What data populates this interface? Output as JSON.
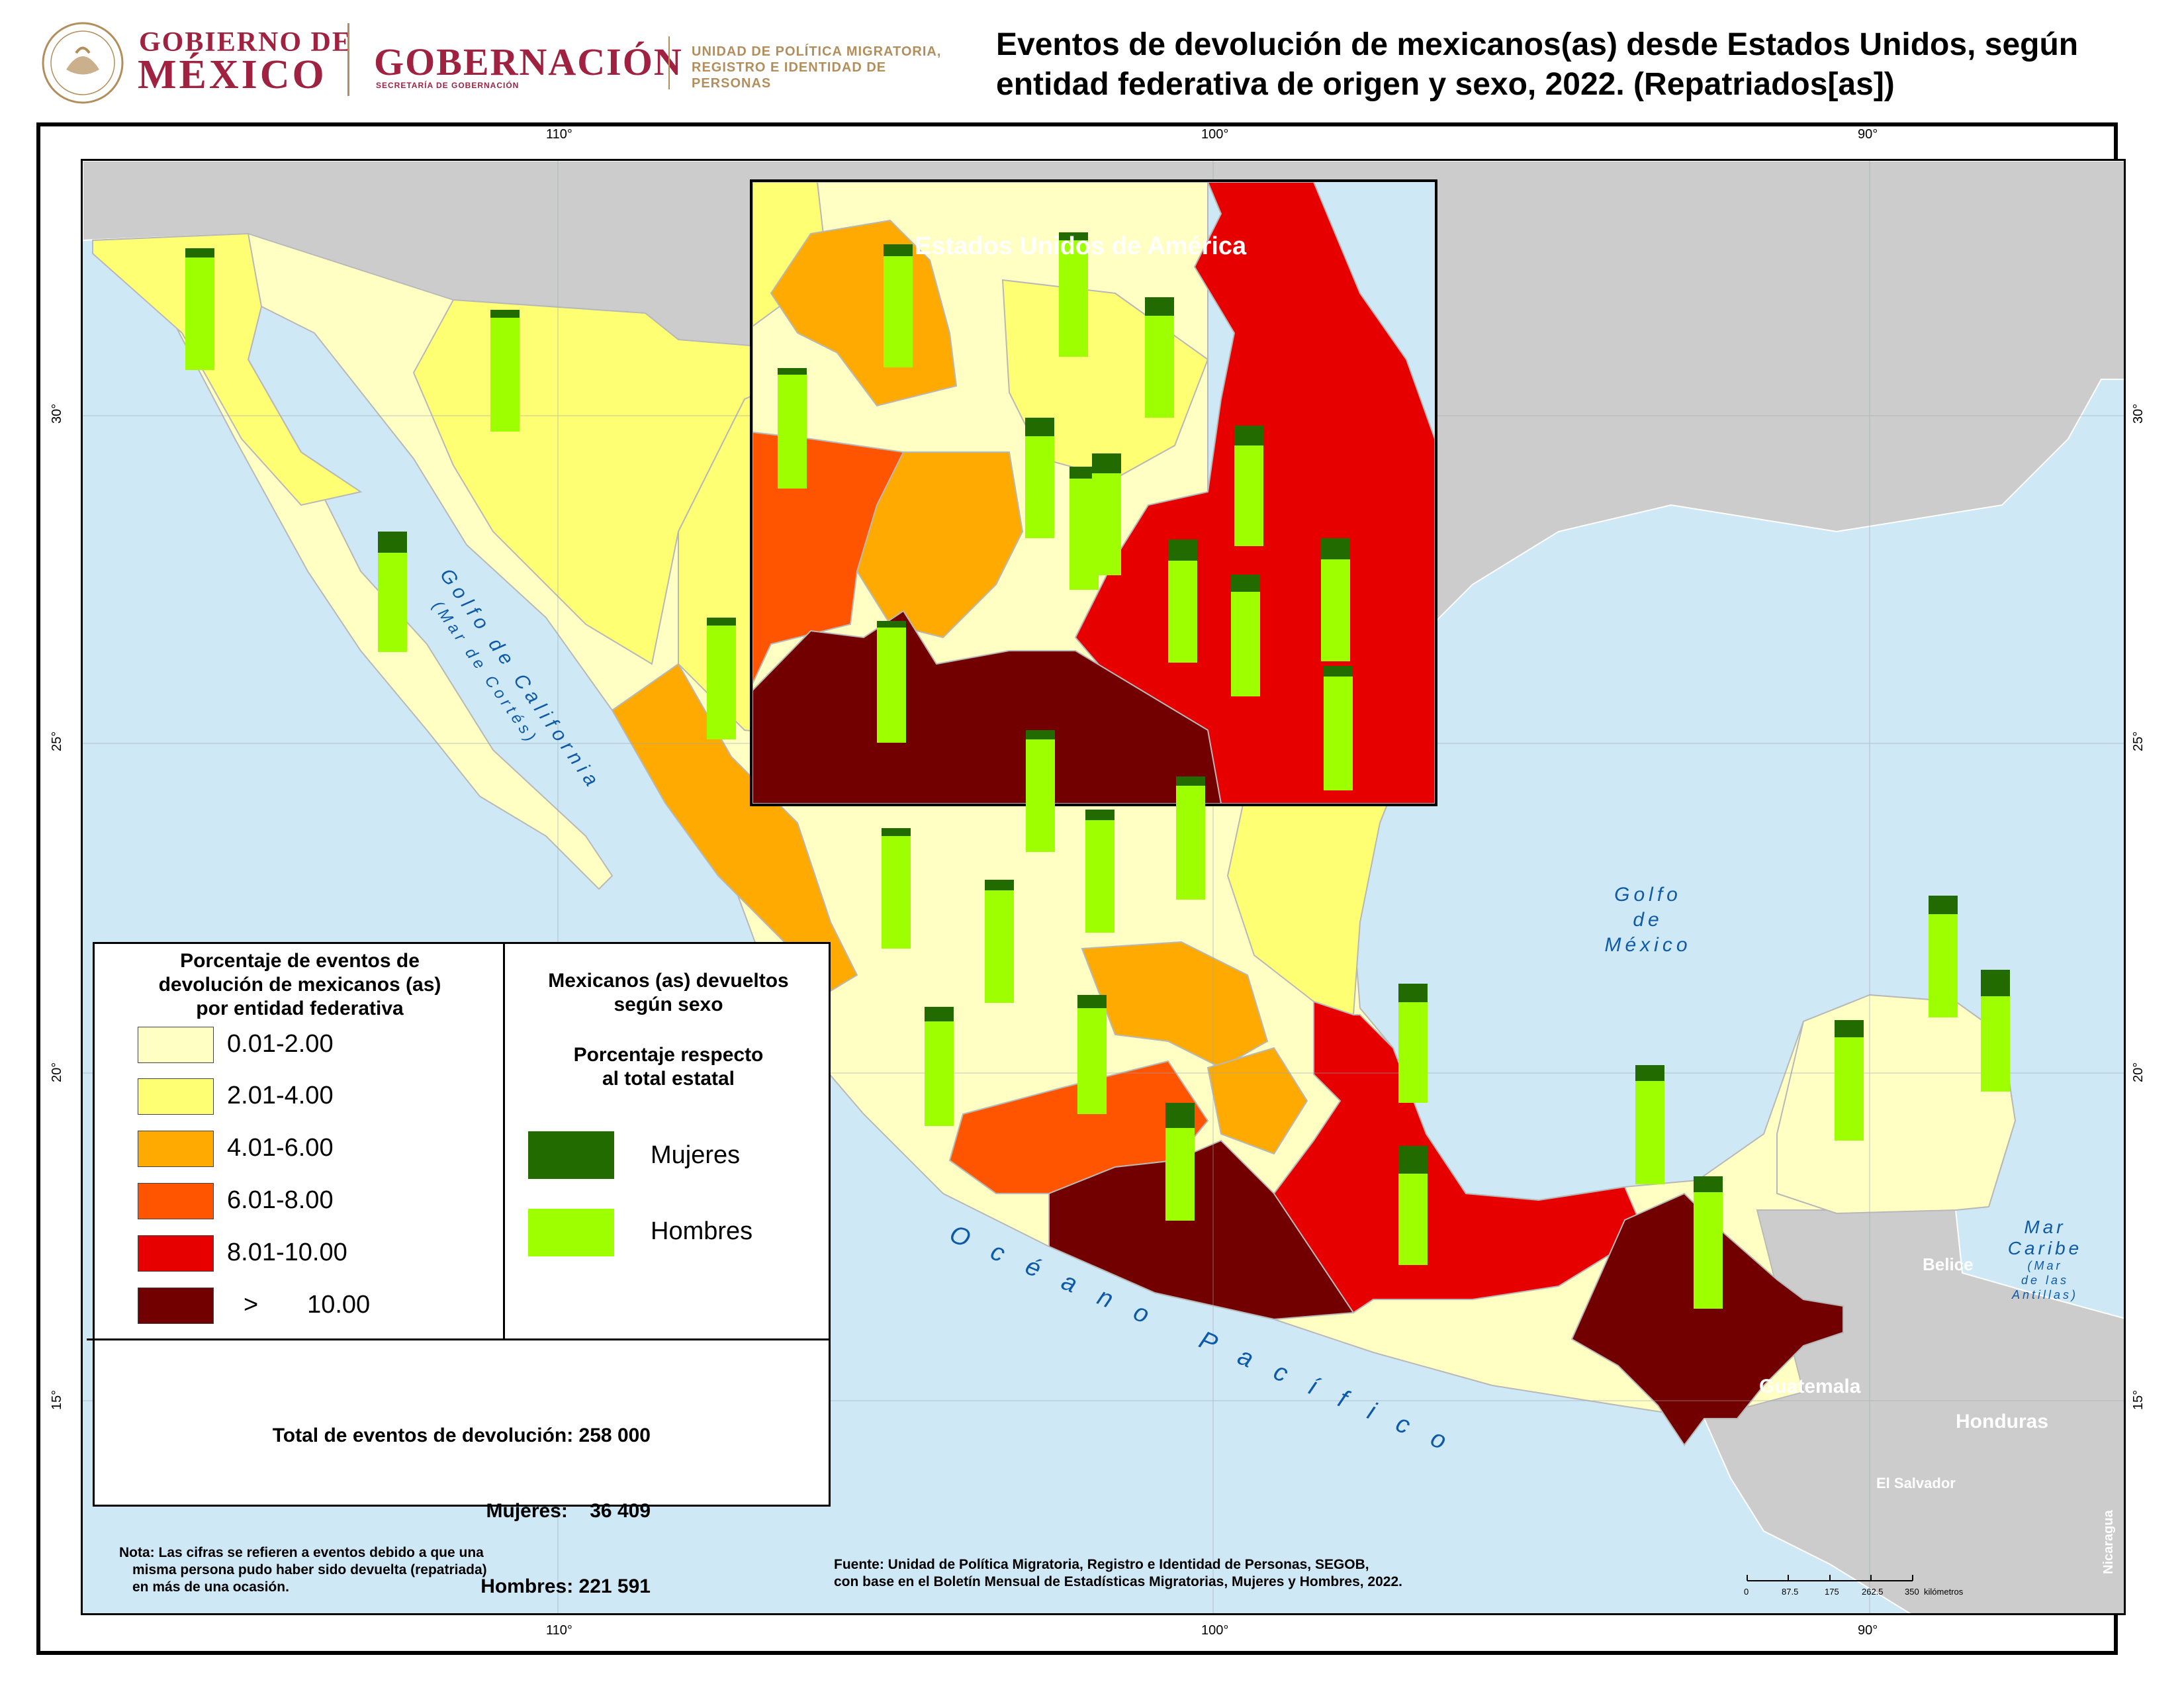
{
  "header": {
    "gob_line1": "GOBIERNO DE",
    "gob_line2": "MÉXICO",
    "gobernacion": "GOBERNACIÓN",
    "secgob": "SECRETARÍA DE GOBERNACIÓN",
    "upm_line1": "UNIDAD DE POLÍTICA MIGRATORIA,",
    "upm_line2": "REGISTRO E IDENTIDAD DE PERSONAS",
    "title_line1": "Eventos de devolución de mexicanos(as) desde Estados Unidos, según",
    "title_line2": "entidad federativa de origen y sexo, 2022. (Repatriados[as])"
  },
  "graticule": {
    "top_labels": [
      "110°",
      "100°",
      "90°"
    ],
    "bottom_labels": [
      "110°",
      "100°",
      "90°"
    ],
    "left_labels": [
      "30°",
      "25°",
      "20°",
      "15°"
    ],
    "right_labels": [
      "30°",
      "25°",
      "20°",
      "15°"
    ]
  },
  "places": {
    "usa": "Estados Unidos de América",
    "golfo_california_1": "Golfo de California",
    "golfo_california_2": "(Mar de Cortés)",
    "golfo_mexico_1": "Golfo",
    "golfo_mexico_2": "de",
    "golfo_mexico_3": "México",
    "oceano": "Océano Pacífico",
    "mar_caribe_1": "Mar",
    "mar_caribe_2": "Caribe",
    "mar_caribe_3": "(Mar",
    "mar_caribe_4": "de las",
    "mar_caribe_5": "Antillas)",
    "belice": "Belice",
    "guatemala": "Guatemala",
    "honduras": "Honduras",
    "el_salvador": "El Salvador",
    "nicaragua": "Nicaragua"
  },
  "legend": {
    "choropleth_title_1": "Porcentaje de eventos de",
    "choropleth_title_2": "devolución de mexicanos (as)",
    "choropleth_title_3": "por entidad federativa",
    "classes": [
      {
        "label": "0.01-2.00",
        "color": "#ffffc4"
      },
      {
        "label": "2.01-4.00",
        "color": "#ffff73"
      },
      {
        "label": "4.01-6.00",
        "color": "#ffaa00"
      },
      {
        "label": "6.01-8.00",
        "color": "#ff5500"
      },
      {
        "label": "8.01-10.00",
        "color": "#e60000"
      },
      {
        "label": ">       10.00",
        "color": "#730000"
      }
    ],
    "sex_title_1": "Mexicanos (as) devueltos",
    "sex_title_2": "según sexo",
    "sex_title_3": "Porcentaje respecto",
    "sex_title_4": "al total estatal",
    "mujeres": {
      "label": "Mujeres",
      "color": "#226b00"
    },
    "hombres": {
      "label": "Hombres",
      "color": "#9dff00"
    },
    "totals_1": "Total de eventos de devolución: 258 000",
    "totals_2": "Mujeres:    36 409",
    "totals_3": "Hombres: 221 591"
  },
  "note": {
    "line1": "Nota: Las cifras se refieren a eventos debido a que una",
    "line2": "misma persona pudo haber sido devuelta (repatriada)",
    "line3": "en más de una ocasión."
  },
  "source": {
    "line1": "Fuente: Unidad de Política Migratoria, Registro e Identidad de Personas, SEGOB,",
    "line2": "con base en el Boletín Mensual de Estadísticas Migratorias, Mujeres y Hombres, 2022."
  },
  "scale_bar": {
    "ticks": [
      "0",
      "87.5",
      "175",
      "262.5",
      "350"
    ],
    "unit": "kilómetros"
  },
  "colors": {
    "land_gray": "#cccccc",
    "water": "#cfe8f5",
    "mujeres": "#226b00",
    "hombres": "#9dff00"
  }
}
